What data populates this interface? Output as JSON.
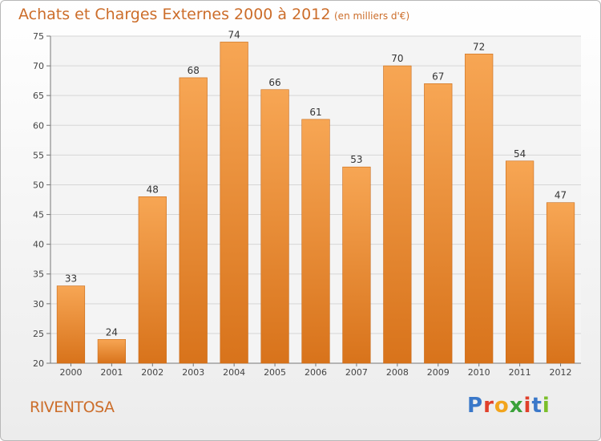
{
  "title": "Achats et Charges Externes 2000 à 2012",
  "subtitle": "(en milliers d'€)",
  "commune": "RIVENTOSA",
  "logo": {
    "letters": [
      "P",
      "r",
      "o",
      "x",
      "i",
      "t",
      "i"
    ],
    "colors": [
      "#3a78c9",
      "#e0402b",
      "#f2a41c",
      "#3aa13a",
      "#e0402b",
      "#3a78c9",
      "#7bbf2a"
    ]
  },
  "colors": {
    "bar_top": "#f7a654",
    "bar_bottom": "#d8731b",
    "bar_edge": "#c96a18",
    "text_accent": "#cc6d2a"
  },
  "chart_data": {
    "type": "bar",
    "categories": [
      "2000",
      "2001",
      "2002",
      "2003",
      "2004",
      "2005",
      "2006",
      "2007",
      "2008",
      "2009",
      "2010",
      "2011",
      "2012"
    ],
    "values": [
      33,
      24,
      48,
      68,
      74,
      66,
      61,
      53,
      70,
      67,
      72,
      54,
      47
    ],
    "title": "Achats et Charges Externes 2000 à 2012",
    "xlabel": "",
    "ylabel": "",
    "ylim": [
      20,
      75
    ],
    "yticks": [
      20,
      25,
      30,
      35,
      40,
      45,
      50,
      55,
      60,
      65,
      70,
      75
    ],
    "grid": true,
    "data_labels": true
  }
}
